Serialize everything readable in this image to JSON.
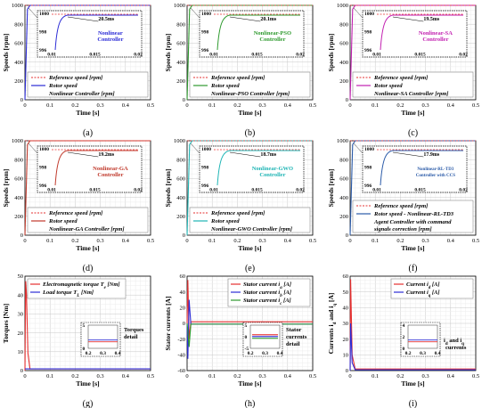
{
  "chart_data": [
    {
      "type": "line",
      "sublabel": "(a)",
      "xlabel": "Time [s]",
      "ylabel": "Speeds [rpm]",
      "xlim": [
        0,
        0.5
      ],
      "ylim": [
        0,
        1000
      ],
      "xticks": [
        "0",
        "0.1",
        "0.2",
        "0.3",
        "0.4",
        "0.5"
      ],
      "yticks": [
        "0",
        "200",
        "400",
        "600",
        "800",
        "1000"
      ],
      "color": "#2b2bd6",
      "legend": [
        "Reference speed [rpm]",
        "Rotor speed",
        "Nonlinear Controller [rpm]"
      ],
      "inset": {
        "yticks": [
          "996",
          "998",
          "1000"
        ],
        "xticks": [
          "0.01",
          "0.015",
          "0.02"
        ],
        "time_label": "20.5ms",
        "controller_label": [
          "Nonlinear",
          "Controller"
        ],
        "controller_color": "#2b2bd6"
      },
      "series": [
        {
          "x": [
            0,
            0.01,
            0.02,
            0.5
          ],
          "y": [
            0,
            960,
            1000,
            1000
          ]
        },
        {
          "x": [
            0,
            0.5
          ],
          "y": [
            1000,
            1000
          ]
        }
      ]
    },
    {
      "type": "line",
      "sublabel": "(b)",
      "xlabel": "Time [s]",
      "ylabel": "Speeds [rpm]",
      "xlim": [
        0,
        0.5
      ],
      "ylim": [
        0,
        1000
      ],
      "xticks": [
        "0",
        "0.1",
        "0.2",
        "0.3",
        "0.4",
        "0.5"
      ],
      "yticks": [
        "0",
        "200",
        "400",
        "600",
        "800",
        "1000"
      ],
      "color": "#2e9a2e",
      "legend": [
        "Reference speed [rpm]",
        "Rotor speed",
        "Nonlinear-PSO Controller [rpm]"
      ],
      "inset": {
        "yticks": [
          "996",
          "998",
          "1000"
        ],
        "xticks": [
          "0.01",
          "0.015",
          "0.02"
        ],
        "time_label": "20.1ms",
        "controller_label": [
          "Nonlinear-PSO",
          "Controller"
        ],
        "controller_color": "#2e9a2e"
      },
      "series": [
        {
          "x": [
            0,
            0.01,
            0.02,
            0.5
          ],
          "y": [
            0,
            960,
            1000,
            1000
          ]
        },
        {
          "x": [
            0,
            0.5
          ],
          "y": [
            1000,
            1000
          ]
        }
      ]
    },
    {
      "type": "line",
      "sublabel": "(c)",
      "xlabel": "Time [s]",
      "ylabel": "Speeds [rpm]",
      "xlim": [
        0,
        0.5
      ],
      "ylim": [
        0,
        1000
      ],
      "xticks": [
        "0",
        "0.1",
        "0.2",
        "0.3",
        "0.4",
        "0.5"
      ],
      "yticks": [
        "0",
        "200",
        "400",
        "600",
        "800",
        "1000"
      ],
      "color": "#c21fb0",
      "legend": [
        "Reference speed [rpm]",
        "Rotor speed",
        "Nonlinear-SA Controller [rpm]"
      ],
      "inset": {
        "yticks": [
          "996",
          "998",
          "1000"
        ],
        "xticks": [
          "0.01",
          "0.015",
          "0.02"
        ],
        "time_label": "19.5ms",
        "controller_label": [
          "Nonlinear-SA",
          "Controller"
        ],
        "controller_color": "#c21fb0"
      },
      "series": [
        {
          "x": [
            0,
            0.01,
            0.02,
            0.5
          ],
          "y": [
            0,
            960,
            1000,
            1000
          ]
        },
        {
          "x": [
            0,
            0.5
          ],
          "y": [
            1000,
            1000
          ]
        }
      ]
    },
    {
      "type": "line",
      "sublabel": "(d)",
      "xlabel": "Time [s]",
      "ylabel": "Speeds [rpm]",
      "xlim": [
        0,
        0.5
      ],
      "ylim": [
        0,
        1000
      ],
      "xticks": [
        "0",
        "0.1",
        "0.2",
        "0.3",
        "0.4",
        "0.5"
      ],
      "yticks": [
        "0",
        "200",
        "400",
        "600",
        "800",
        "1000"
      ],
      "color": "#c0392b",
      "legend": [
        "Reference speed [rpm]",
        "Rotor speed",
        "Nonlinear-GA Controller [rpm]"
      ],
      "inset": {
        "yticks": [
          "996",
          "998",
          "1000"
        ],
        "xticks": [
          "0.01",
          "0.015",
          "0.02"
        ],
        "time_label": "19.2ms",
        "controller_label": [
          "Nonlinear-GA",
          "Controller"
        ],
        "controller_color": "#c0392b"
      },
      "series": [
        {
          "x": [
            0,
            0.01,
            0.02,
            0.5
          ],
          "y": [
            0,
            960,
            1000,
            1000
          ]
        },
        {
          "x": [
            0,
            0.5
          ],
          "y": [
            1000,
            1000
          ]
        }
      ]
    },
    {
      "type": "line",
      "sublabel": "(e)",
      "xlabel": "Time [s]",
      "ylabel": "Speeds [rpm]",
      "xlim": [
        0,
        0.5
      ],
      "ylim": [
        0,
        1000
      ],
      "xticks": [
        "0",
        "0.1",
        "0.2",
        "0.3",
        "0.4",
        "0.5"
      ],
      "yticks": [
        "0",
        "200",
        "400",
        "600",
        "800",
        "1000"
      ],
      "color": "#1fb5b5",
      "legend": [
        "Reference speed [rpm]",
        "Rotor speed",
        "Nonlinear-GWO Controller [rpm]"
      ],
      "inset": {
        "yticks": [
          "996",
          "998",
          "1000"
        ],
        "xticks": [
          "0.01",
          "0.015",
          "0.02"
        ],
        "time_label": "18.7ms",
        "controller_label": [
          "Nonlinear-GWO",
          "Controller"
        ],
        "controller_color": "#1fb5b5"
      },
      "series": [
        {
          "x": [
            0,
            0.01,
            0.02,
            0.5
          ],
          "y": [
            0,
            960,
            1000,
            1000
          ]
        },
        {
          "x": [
            0,
            0.5
          ],
          "y": [
            1000,
            1000
          ]
        }
      ]
    },
    {
      "type": "line",
      "sublabel": "(f)",
      "xlabel": "Time [s]",
      "ylabel": "Speeds [rpm]",
      "xlim": [
        0,
        0.5
      ],
      "ylim": [
        0,
        1000
      ],
      "xticks": [
        "0",
        "0.1",
        "0.2",
        "0.3",
        "0.4",
        "0.5"
      ],
      "yticks": [
        "0",
        "200",
        "400",
        "600",
        "800",
        "1000"
      ],
      "color": "#2a5aa8",
      "legend": [
        "Reference speed [rpm]",
        "Rotor speed - Nonlinear-RL-TD3",
        "Agent Controller with command",
        "signals correction [rpm]"
      ],
      "inset": {
        "yticks": [
          "996",
          "998",
          "1000"
        ],
        "xticks": [
          "0.01",
          "0.015",
          "0.02"
        ],
        "time_label": "17.9ms",
        "controller_label": [
          "Nonlinear-RL-TD3",
          "Controller with CCS"
        ],
        "controller_color": "#2a5aa8"
      },
      "series": [
        {
          "x": [
            0,
            0.01,
            0.02,
            0.5
          ],
          "y": [
            0,
            960,
            1000,
            1000
          ]
        },
        {
          "x": [
            0,
            0.5
          ],
          "y": [
            1000,
            1000
          ]
        }
      ]
    },
    {
      "type": "line",
      "sublabel": "(g)",
      "xlabel": "Time [s]",
      "ylabel": "Torques [Nm]",
      "xlim": [
        0,
        0.5
      ],
      "ylim": [
        0,
        55
      ],
      "xticks": [
        "0",
        "0.1",
        "0.2",
        "0.3",
        "0.4",
        "0.5"
      ],
      "yticks": [
        "0",
        "10",
        "20",
        "30",
        "40",
        "50"
      ],
      "legend": [
        {
          "text": "Electromagnetic torque T",
          "sub": "e",
          "after": " [Nm]",
          "color": "#e63030"
        },
        {
          "text": "Load torque T",
          "sub": "L",
          "after": " [Nm]",
          "color": "#2b2bd6"
        }
      ],
      "inset": {
        "yticks": [
          "0",
          "5"
        ],
        "xticks": [
          "0.2",
          "0.3",
          "0.4"
        ],
        "caption": [
          "Torques",
          "detail"
        ]
      },
      "series": [
        {
          "name": "Electromagnetic torque",
          "x": [
            0,
            0.003,
            0.006,
            0.012,
            0.02,
            0.5
          ],
          "y": [
            0,
            52,
            45,
            10,
            1,
            1
          ]
        },
        {
          "name": "Load torque",
          "x": [
            0,
            0.5
          ],
          "y": [
            1,
            1
          ]
        }
      ]
    },
    {
      "type": "line",
      "sublabel": "(h)",
      "xlabel": "Time [s]",
      "ylabel": "Stator currents [A]",
      "xlim": [
        0,
        0.5
      ],
      "ylim": [
        -60,
        60
      ],
      "xticks": [
        "0",
        "0.1",
        "0.2",
        "0.3",
        "0.4",
        "0.5"
      ],
      "yticks": [
        "-60",
        "-40",
        "-20",
        "0",
        "20",
        "40",
        "60"
      ],
      "legend": [
        {
          "text": "Stator current i",
          "sub": "a",
          "after": " [A]",
          "color": "#e63030"
        },
        {
          "text": "Stator current i",
          "sub": "b",
          "after": " [A]",
          "color": "#2b2bd6"
        },
        {
          "text": "Stator current i",
          "sub": "c",
          "after": " [A]",
          "color": "#2e9a2e"
        }
      ],
      "inset": {
        "yticks": [
          "-5",
          "0",
          "5"
        ],
        "xticks": [
          "0.2",
          "0.3",
          "0.4"
        ],
        "caption": [
          "Stator",
          "currents",
          "detail"
        ]
      },
      "series": [
        {
          "name": "ia",
          "x": [
            0,
            0.003,
            0.008,
            0.015,
            0.5
          ],
          "y": [
            0,
            55,
            -20,
            2,
            2
          ]
        },
        {
          "name": "ib",
          "x": [
            0,
            0.003,
            0.008,
            0.015,
            0.5
          ],
          "y": [
            0,
            -45,
            30,
            -1,
            -1
          ]
        },
        {
          "name": "ic",
          "x": [
            0,
            0.003,
            0.008,
            0.015,
            0.5
          ],
          "y": [
            0,
            -10,
            -30,
            -1,
            -1
          ]
        }
      ]
    },
    {
      "type": "line",
      "sublabel": "(i)",
      "xlabel": "Time [s]",
      "ylabel": "Currents i",
      "ylabel_sub1": "d",
      "ylabel_mid": " and i",
      "ylabel_sub2": "q",
      "ylabel_end": " [A]",
      "xlim": [
        0,
        0.5
      ],
      "ylim": [
        0,
        60
      ],
      "xticks": [
        "0",
        "0.1",
        "0.2",
        "0.3",
        "0.4",
        "0.5"
      ],
      "yticks": [
        "0",
        "10",
        "20",
        "30",
        "40",
        "50",
        "60"
      ],
      "legend": [
        {
          "text": "Current i",
          "sub": "d",
          "after": " [A]",
          "color": "#e63030"
        },
        {
          "text": "Current i",
          "sub": "q",
          "after": " [A]",
          "color": "#2b2bd6"
        }
      ],
      "inset": {
        "yticks": [
          "0",
          "2",
          "4"
        ],
        "xticks": [
          "0.2",
          "0.3",
          "0.4"
        ],
        "caption": [
          "i",
          "d",
          " and i",
          "q",
          "currents"
        ]
      },
      "series": [
        {
          "name": "id",
          "x": [
            0,
            0.002,
            0.008,
            0.02,
            0.5
          ],
          "y": [
            0,
            58,
            10,
            1,
            1
          ]
        },
        {
          "name": "iq",
          "x": [
            0,
            0.002,
            0.008,
            0.02,
            0.5
          ],
          "y": [
            0,
            30,
            5,
            0.5,
            0.5
          ]
        }
      ]
    }
  ]
}
